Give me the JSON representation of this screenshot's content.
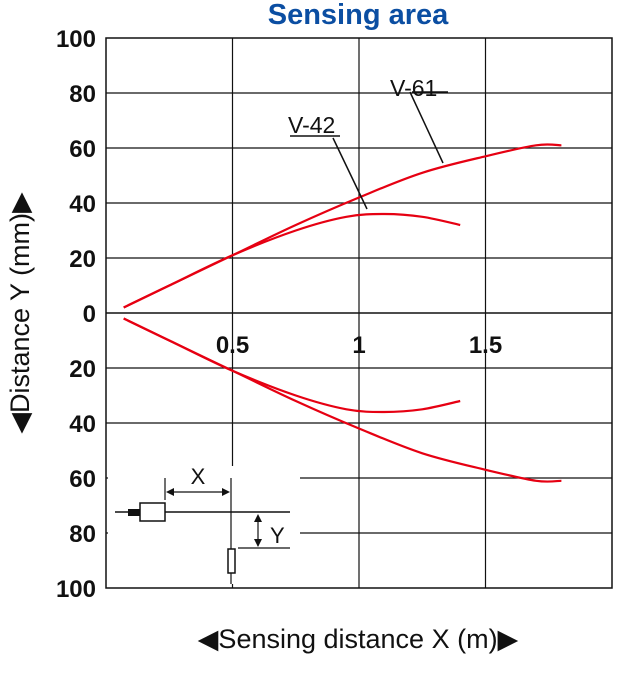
{
  "chart_data": {
    "type": "line",
    "title": "Sensing area",
    "xlabel": "◀Sensing distance X (m)▶",
    "ylabel": "◀Distance Y (mm)▶",
    "xlim": [
      0,
      2.0
    ],
    "ylim": [
      -100,
      100
    ],
    "x_ticks": [
      "0.5",
      "1",
      "1.5"
    ],
    "y_ticks_upper": [
      "100",
      "80",
      "60",
      "40",
      "20",
      "0"
    ],
    "y_ticks_lower": [
      "20",
      "40",
      "60",
      "80",
      "100"
    ],
    "grid": true,
    "series": [
      {
        "name": "V-61",
        "color": "#e60012",
        "upper": [
          [
            0.07,
            2
          ],
          [
            0.25,
            10
          ],
          [
            0.5,
            21
          ],
          [
            0.75,
            32
          ],
          [
            1.0,
            42
          ],
          [
            1.25,
            51
          ],
          [
            1.5,
            57
          ],
          [
            1.7,
            61
          ],
          [
            1.8,
            61
          ]
        ],
        "lower": [
          [
            0.07,
            -2
          ],
          [
            0.25,
            -10
          ],
          [
            0.5,
            -21
          ],
          [
            0.75,
            -32
          ],
          [
            1.0,
            -42
          ],
          [
            1.25,
            -51
          ],
          [
            1.5,
            -57
          ],
          [
            1.7,
            -61
          ],
          [
            1.8,
            -61
          ]
        ]
      },
      {
        "name": "V-42",
        "color": "#e60012",
        "upper": [
          [
            0.07,
            2
          ],
          [
            0.25,
            10
          ],
          [
            0.5,
            21
          ],
          [
            0.75,
            30
          ],
          [
            0.95,
            35
          ],
          [
            1.1,
            36
          ],
          [
            1.25,
            35
          ],
          [
            1.4,
            32
          ]
        ],
        "lower": [
          [
            0.07,
            -2
          ],
          [
            0.25,
            -10
          ],
          [
            0.5,
            -21
          ],
          [
            0.75,
            -30
          ],
          [
            0.95,
            -35
          ],
          [
            1.1,
            -36
          ],
          [
            1.25,
            -35
          ],
          [
            1.4,
            -32
          ]
        ]
      }
    ],
    "inset": {
      "x_label": "X",
      "y_label": "Y"
    }
  }
}
